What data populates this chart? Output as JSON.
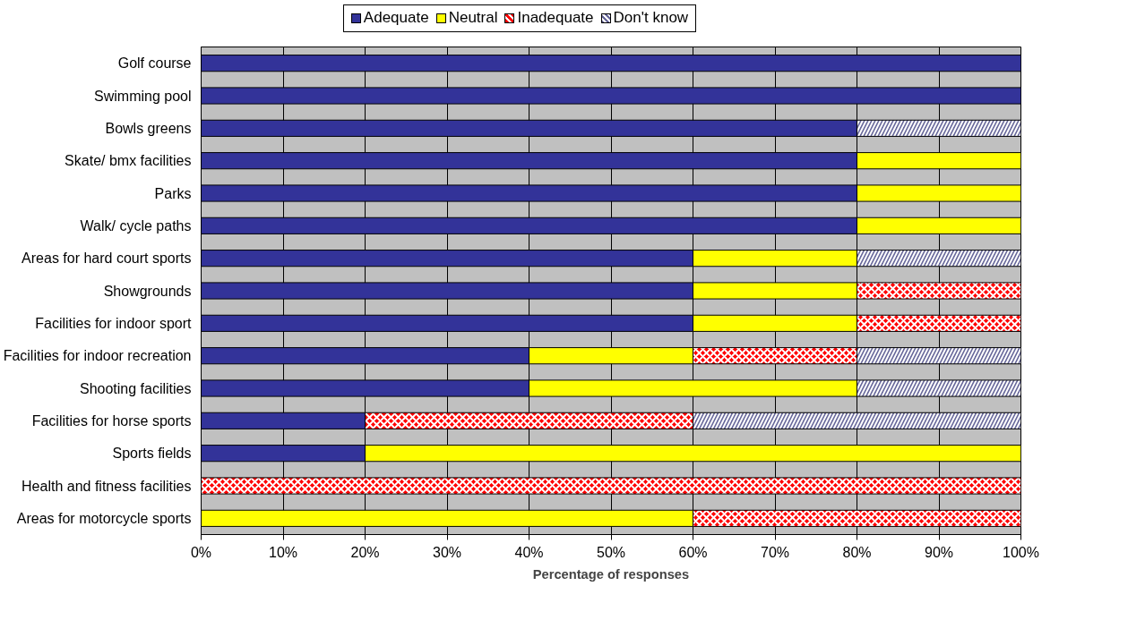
{
  "chart_data": {
    "type": "bar",
    "orientation": "horizontal",
    "stacked": true,
    "xlabel": "Percentage of responses",
    "categories": [
      "Golf course",
      "Swimming pool",
      "Bowls greens",
      "Skate/ bmx facilities",
      "Parks",
      "Walk/ cycle paths",
      "Areas for hard court sports",
      "Showgrounds",
      "Facilities for indoor sport",
      "Facilities for indoor recreation",
      "Shooting facilities",
      "Facilities for horse sports",
      "Sports fields",
      "Health and fitness facilities",
      "Areas for motorcycle sports"
    ],
    "series": [
      {
        "name": "Adequate",
        "color": "#333399",
        "values": [
          100,
          100,
          80,
          80,
          80,
          80,
          60,
          60,
          60,
          40,
          40,
          20,
          20,
          0,
          0
        ]
      },
      {
        "name": "Neutral",
        "color": "#ffff00",
        "values": [
          0,
          0,
          0,
          20,
          20,
          20,
          20,
          20,
          20,
          20,
          40,
          0,
          80,
          0,
          60
        ]
      },
      {
        "name": "Inadequate",
        "color": "#ff0000",
        "values": [
          0,
          0,
          0,
          0,
          0,
          0,
          0,
          20,
          20,
          20,
          0,
          40,
          0,
          100,
          40
        ]
      },
      {
        "name": "Don't know",
        "color": "#666699",
        "values": [
          0,
          0,
          20,
          0,
          0,
          0,
          20,
          0,
          0,
          20,
          20,
          40,
          0,
          0,
          0
        ]
      }
    ],
    "xlim": [
      0,
      100
    ],
    "xticks": [
      {
        "value": 0,
        "label": "0%"
      },
      {
        "value": 10,
        "label": "10%"
      },
      {
        "value": 20,
        "label": "20%"
      },
      {
        "value": 30,
        "label": "30%"
      },
      {
        "value": 40,
        "label": "40%"
      },
      {
        "value": 50,
        "label": "50%"
      },
      {
        "value": 60,
        "label": "60%"
      },
      {
        "value": 70,
        "label": "70%"
      },
      {
        "value": 80,
        "label": "80%"
      },
      {
        "value": 90,
        "label": "90%"
      },
      {
        "value": 100,
        "label": "100%"
      }
    ],
    "grid": "x",
    "legend": "top"
  }
}
